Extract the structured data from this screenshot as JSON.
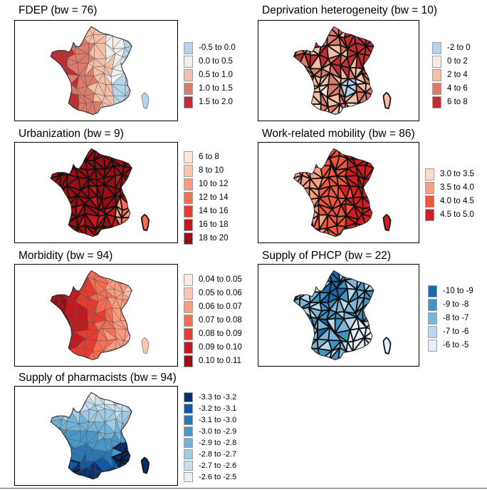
{
  "panels": [
    {
      "id": "fdep",
      "title": "FDEP (bw = 76)",
      "legend": [
        {
          "label": "-0.5 to 0.0",
          "color": "#b5d4e9"
        },
        {
          "label": "0.0 to 0.5",
          "color": "#f1efee"
        },
        {
          "label": "0.5 to 1.0",
          "color": "#f4bfa6"
        },
        {
          "label": "1.0 to 1.5",
          "color": "#dd7b6a"
        },
        {
          "label": "1.5 to 2.0",
          "color": "#c12d33"
        }
      ]
    },
    {
      "id": "deprivation",
      "title": "Deprivation heterogeneity (bw = 10)",
      "legend": [
        {
          "label": "-2 to 0",
          "color": "#b5d4e9"
        },
        {
          "label": "0 to 2",
          "color": "#f6ebe5"
        },
        {
          "label": "2 to 4",
          "color": "#f4bfa6"
        },
        {
          "label": "4 to 6",
          "color": "#dd7b6a"
        },
        {
          "label": "6 to 8",
          "color": "#c12d33"
        }
      ]
    },
    {
      "id": "urbanization",
      "title": "Urbanization (bw = 9)",
      "legend": [
        {
          "label": "6 to 8",
          "color": "#fee6dc"
        },
        {
          "label": "8 to 10",
          "color": "#fcc3ab"
        },
        {
          "label": "10 to 12",
          "color": "#fc9a7c"
        },
        {
          "label": "12 to 14",
          "color": "#f96d54"
        },
        {
          "label": "14 to 16",
          "color": "#e93a2f"
        },
        {
          "label": "16 to 18",
          "color": "#c6181c"
        },
        {
          "label": "18 to 20",
          "color": "#9b0d14"
        }
      ]
    },
    {
      "id": "mobility",
      "title": "Work-related mobility (bw = 86)",
      "legend": [
        {
          "label": "3.0 to 3.5",
          "color": "#fddacb"
        },
        {
          "label": "3.5 to 4.0",
          "color": "#fb9f82"
        },
        {
          "label": "4.0 to 4.5",
          "color": "#f1553f"
        },
        {
          "label": "4.5 to 5.0",
          "color": "#cf1d20"
        }
      ]
    },
    {
      "id": "morbidity",
      "title": "Morbidity (bw = 94)",
      "legend": [
        {
          "label": "0.04 to 0.05",
          "color": "#fee8df"
        },
        {
          "label": "0.05 to 0.06",
          "color": "#fcc5b0"
        },
        {
          "label": "0.06 to 0.07",
          "color": "#fc9b80"
        },
        {
          "label": "0.07 to 0.08",
          "color": "#f86d55"
        },
        {
          "label": "0.08 to 0.09",
          "color": "#e83c2f"
        },
        {
          "label": "0.09 to 0.10",
          "color": "#c6181c"
        },
        {
          "label": "0.10 to 0.11",
          "color": "#9b0d14"
        }
      ]
    },
    {
      "id": "phcp",
      "title": "Supply of PHCP (bw = 22)",
      "legend": [
        {
          "label": "-10 to -9",
          "color": "#2166ac"
        },
        {
          "label": "-9 to -8",
          "color": "#4393c3"
        },
        {
          "label": "-8 to -7",
          "color": "#7fb4d9"
        },
        {
          "label": "-7 to -6",
          "color": "#bcd8ec"
        },
        {
          "label": "-6 to -5",
          "color": "#e3eef8"
        }
      ]
    },
    {
      "id": "pharmacists",
      "title": "Supply of pharmacists (bw = 94)",
      "legend": [
        {
          "label": "-3.3 to -3.2",
          "color": "#08306b"
        },
        {
          "label": "-3.2 to -3.1",
          "color": "#0f5aa6"
        },
        {
          "label": "-3.1 to -3.0",
          "color": "#2878b8"
        },
        {
          "label": "-3.0 to -2.9",
          "color": "#4a98c9"
        },
        {
          "label": "-2.9 to -2.8",
          "color": "#74b2d8"
        },
        {
          "label": "-2.8 to -2.7",
          "color": "#a1cae3"
        },
        {
          "label": "-2.7 to -2.6",
          "color": "#c8ddef"
        },
        {
          "label": "-2.6 to -2.5",
          "color": "#e8f1fa"
        }
      ]
    }
  ],
  "chart_data": [
    {
      "type": "heatmap",
      "title": "FDEP (bw = 76)",
      "categories": [
        "-0.5 to 0.0",
        "0.0 to 0.5",
        "0.5 to 1.0",
        "1.0 to 1.5",
        "1.5 to 2.0"
      ],
      "legend_position": "right"
    },
    {
      "type": "heatmap",
      "title": "Deprivation heterogeneity (bw = 10)",
      "categories": [
        "-2 to 0",
        "0 to 2",
        "2 to 4",
        "4 to 6",
        "6 to 8"
      ],
      "legend_position": "right"
    },
    {
      "type": "heatmap",
      "title": "Urbanization (bw = 9)",
      "categories": [
        "6 to 8",
        "8 to 10",
        "10 to 12",
        "12 to 14",
        "14 to 16",
        "16 to 18",
        "18 to 20"
      ],
      "legend_position": "right"
    },
    {
      "type": "heatmap",
      "title": "Work-related mobility (bw = 86)",
      "categories": [
        "3.0 to 3.5",
        "3.5 to 4.0",
        "4.0 to 4.5",
        "4.5 to 5.0"
      ],
      "legend_position": "right"
    },
    {
      "type": "heatmap",
      "title": "Morbidity (bw = 94)",
      "categories": [
        "0.04 to 0.05",
        "0.05 to 0.06",
        "0.06 to 0.07",
        "0.07 to 0.08",
        "0.08 to 0.09",
        "0.09 to 0.10",
        "0.10 to 0.11"
      ],
      "legend_position": "right"
    },
    {
      "type": "heatmap",
      "title": "Supply of PHCP (bw = 22)",
      "categories": [
        "-10 to -9",
        "-9 to -8",
        "-8 to -7",
        "-7 to -6",
        "-6 to -5"
      ],
      "legend_position": "right"
    },
    {
      "type": "heatmap",
      "title": "Supply of pharmacists (bw = 94)",
      "categories": [
        "-3.3 to -3.2",
        "-3.2 to -3.1",
        "-3.1 to -3.0",
        "-3.0 to -2.9",
        "-2.9 to -2.8",
        "-2.8 to -2.7",
        "-2.7 to -2.6",
        "-2.6 to -2.5"
      ],
      "legend_position": "right"
    }
  ]
}
